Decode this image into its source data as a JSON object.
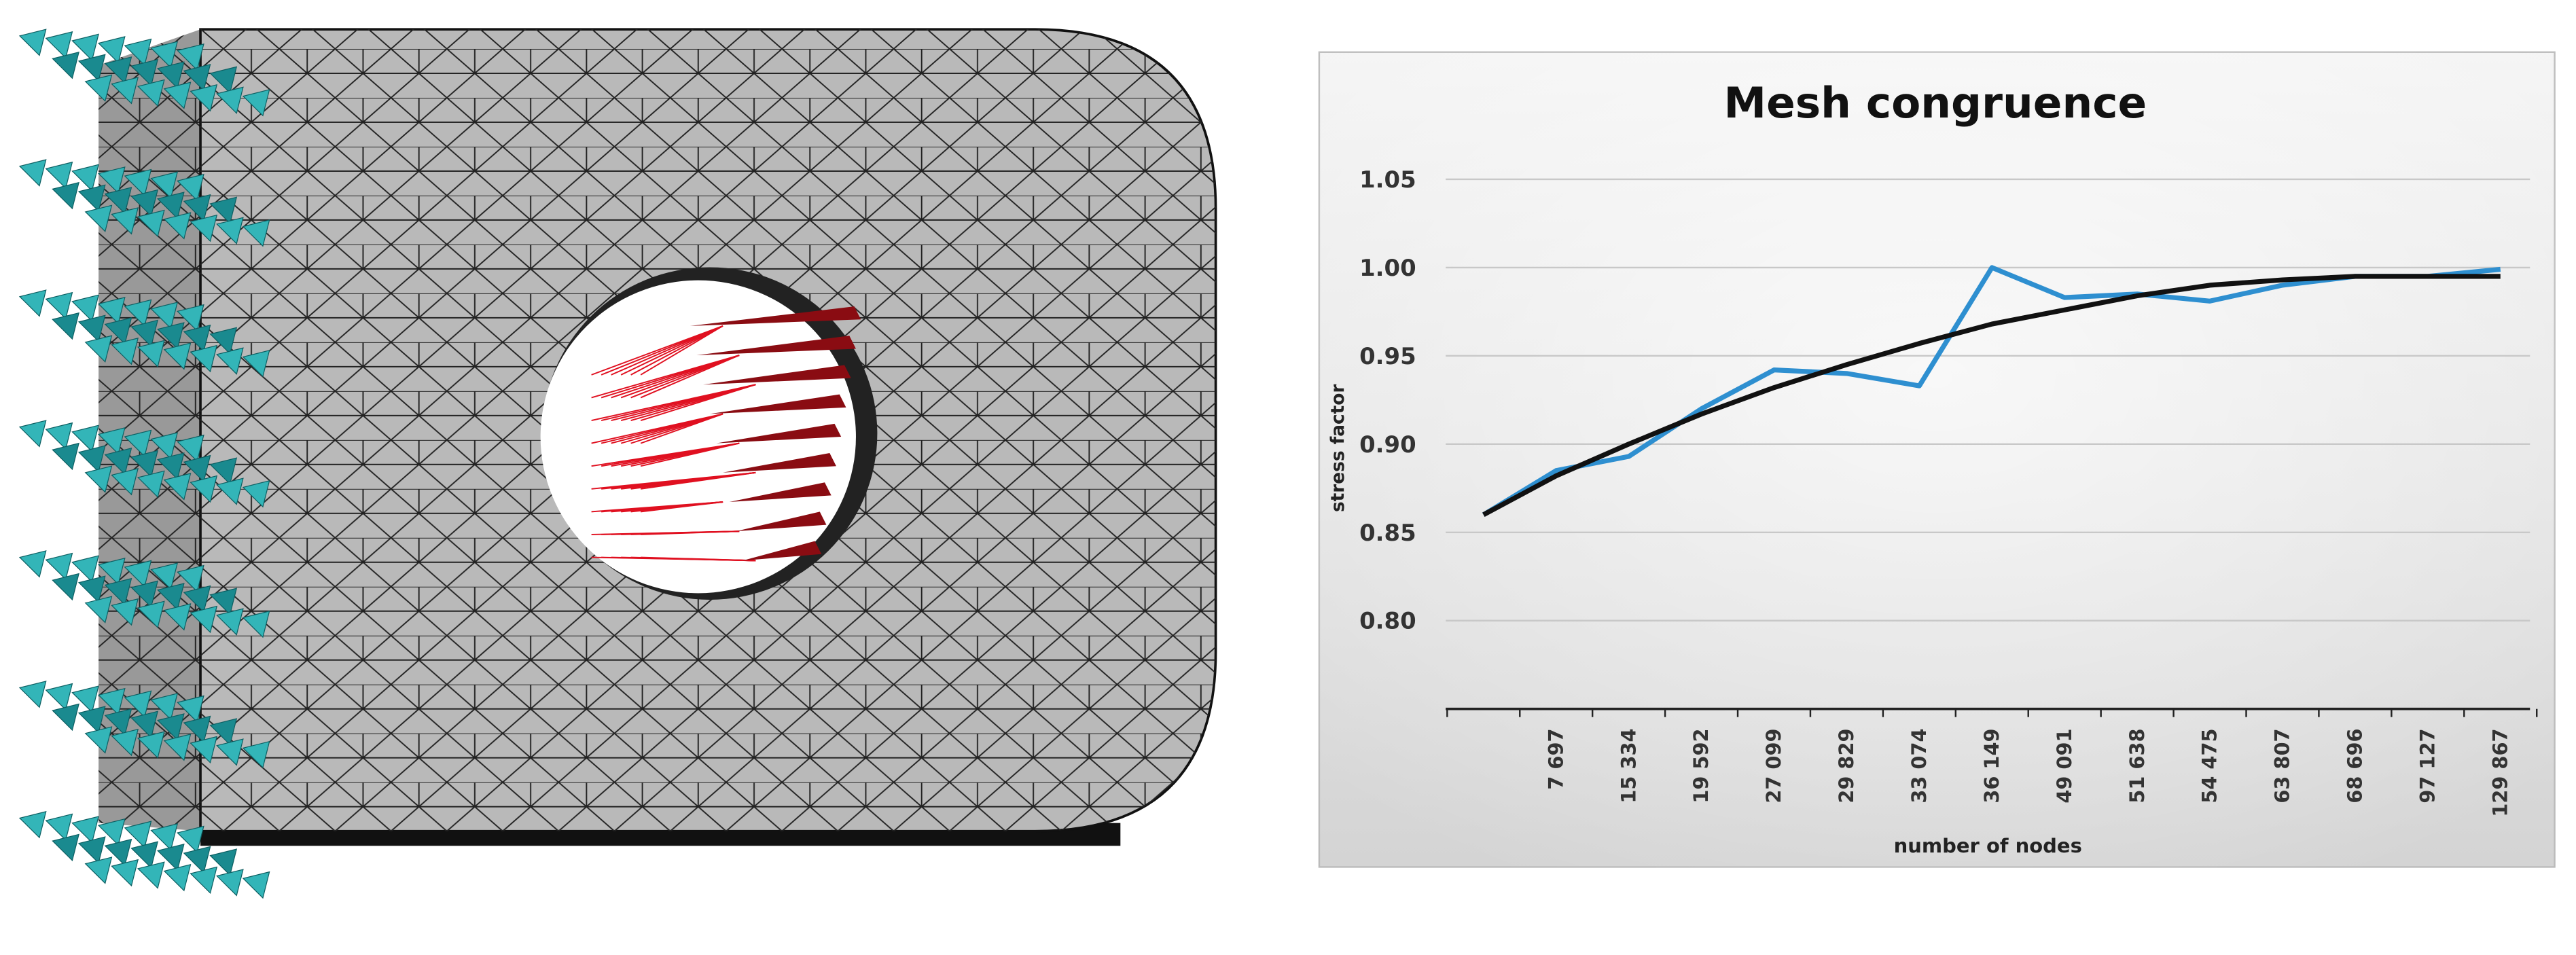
{
  "chart_data": {
    "type": "line",
    "title": "Mesh congruence",
    "x_label": "number of nodes",
    "y_label": "stress factor",
    "categories": [
      null,
      "7 697",
      "15 334",
      "19 592",
      "27 099",
      "29 829",
      "33 074",
      "36 149",
      "49 091",
      "51 638",
      "54 475",
      "63 807",
      "68 696",
      "97 127",
      "129 867"
    ],
    "series": [
      {
        "color": "#2e8fd0",
        "values": [
          0.86,
          0.885,
          0.893,
          0.92,
          0.942,
          0.94,
          0.933,
          1.0,
          0.983,
          0.985,
          0.981,
          0.99,
          0.995,
          0.995,
          0.999
        ]
      },
      {
        "color": "#111111",
        "values": [
          0.86,
          0.882,
          0.9,
          0.917,
          0.932,
          0.945,
          0.957,
          0.968,
          0.976,
          0.984,
          0.99,
          0.993,
          0.995,
          0.995,
          0.995
        ]
      }
    ],
    "ylim": [
      0.75,
      1.05
    ],
    "yticks": [
      {
        "value": 0.8,
        "label": "0.80"
      },
      0.85,
      {
        "value": 0.9,
        "label": "0.90"
      },
      0.95,
      {
        "value": 1.0,
        "label": "1.00"
      },
      1.05
    ],
    "grid": true
  }
}
